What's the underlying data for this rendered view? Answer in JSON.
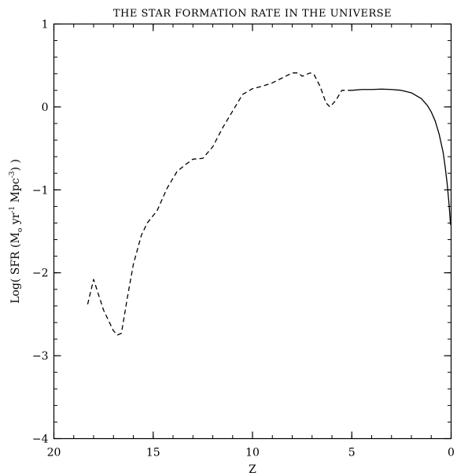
{
  "chart_data": {
    "type": "line",
    "title": "THE STAR FORMATION RATE IN THE UNIVERSE",
    "xlabel": "Z",
    "ylabel_parts": {
      "prefix": "Log( SFR (M",
      "sub": "o",
      "mid1": " yr",
      "sup1": "-1",
      "mid2": " Mpc",
      "sup2": "-3",
      "suffix": ") )"
    },
    "xlim": [
      20,
      0
    ],
    "ylim": [
      -4,
      1
    ],
    "x_reversed": true,
    "x_ticks": [
      {
        "value": 20,
        "label": "20"
      },
      {
        "value": 15,
        "label": "15"
      },
      {
        "value": 10,
        "label": "10"
      },
      {
        "value": 5,
        "label": "5"
      },
      {
        "value": 0,
        "label": "0"
      }
    ],
    "y_ticks": [
      {
        "value": 1,
        "label": "1"
      },
      {
        "value": 0,
        "label": "0"
      },
      {
        "value": -1,
        "label": "−1"
      },
      {
        "value": -2,
        "label": "−2"
      },
      {
        "value": -3,
        "label": "−3"
      },
      {
        "value": -4,
        "label": "−4"
      }
    ],
    "x_minor_step": 1,
    "y_minor_step": 0.2,
    "grid": false,
    "series": [
      {
        "style": "dashed",
        "color": "#000000",
        "points": [
          [
            18.3,
            -2.38
          ],
          [
            18.0,
            -2.08
          ],
          [
            17.5,
            -2.45
          ],
          [
            17.0,
            -2.7
          ],
          [
            16.8,
            -2.75
          ],
          [
            16.6,
            -2.73
          ],
          [
            16.3,
            -2.3
          ],
          [
            16.0,
            -1.9
          ],
          [
            15.6,
            -1.55
          ],
          [
            15.3,
            -1.4
          ],
          [
            14.8,
            -1.25
          ],
          [
            14.3,
            -0.98
          ],
          [
            13.8,
            -0.78
          ],
          [
            13.4,
            -0.7
          ],
          [
            13.0,
            -0.63
          ],
          [
            12.5,
            -0.62
          ],
          [
            12.0,
            -0.48
          ],
          [
            11.5,
            -0.25
          ],
          [
            11.0,
            -0.05
          ],
          [
            10.5,
            0.15
          ],
          [
            10.0,
            0.22
          ],
          [
            9.5,
            0.25
          ],
          [
            9.0,
            0.29
          ],
          [
            8.5,
            0.35
          ],
          [
            8.0,
            0.41
          ],
          [
            7.7,
            0.41
          ],
          [
            7.5,
            0.37
          ],
          [
            7.1,
            0.41
          ],
          [
            6.9,
            0.39
          ],
          [
            6.6,
            0.25
          ],
          [
            6.3,
            0.05
          ],
          [
            6.1,
            0.0
          ],
          [
            5.8,
            0.08
          ],
          [
            5.5,
            0.2
          ],
          [
            5.2,
            0.2
          ],
          [
            5.0,
            0.2
          ]
        ]
      },
      {
        "style": "solid",
        "color": "#000000",
        "points": [
          [
            5.0,
            0.2
          ],
          [
            4.5,
            0.21
          ],
          [
            4.0,
            0.21
          ],
          [
            3.5,
            0.215
          ],
          [
            3.0,
            0.21
          ],
          [
            2.5,
            0.2
          ],
          [
            2.0,
            0.17
          ],
          [
            1.5,
            0.1
          ],
          [
            1.2,
            0.02
          ],
          [
            1.0,
            -0.06
          ],
          [
            0.8,
            -0.17
          ],
          [
            0.6,
            -0.33
          ],
          [
            0.4,
            -0.55
          ],
          [
            0.3,
            -0.72
          ],
          [
            0.2,
            -0.92
          ],
          [
            0.1,
            -1.18
          ],
          [
            0.03,
            -1.42
          ]
        ]
      }
    ]
  }
}
